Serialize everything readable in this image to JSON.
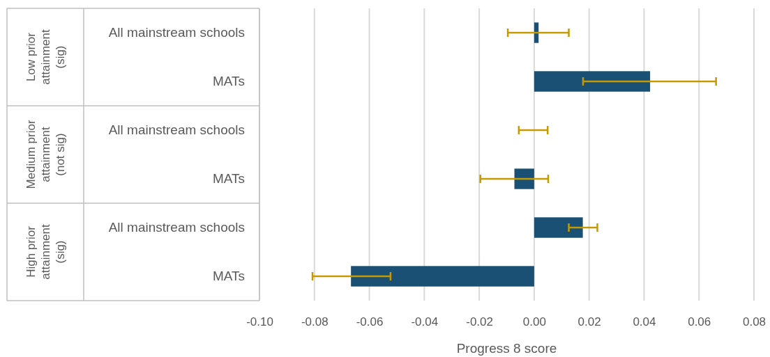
{
  "chart_data": {
    "type": "bar",
    "orientation": "horizontal",
    "xlabel": "Progress 8 score",
    "categories": [
      "All mainstream schools",
      "MATs",
      "All mainstream schools",
      "MATs",
      "All mainstream schools",
      "MATs"
    ],
    "annotations": [
      "Low prior attainment (sig)",
      "Medium prior attainment (not sig)",
      "High prior attainment (sig)"
    ],
    "series": [
      {
        "color": "#1a5074",
        "values": [
          0.0016,
          0.0422,
          0.0,
          -0.0072,
          0.0177,
          -0.0667
        ],
        "errors": [
          [
            -0.0096,
            0.0126
          ],
          [
            0.0178,
            0.0662
          ],
          [
            -0.0056,
            0.0049
          ],
          [
            -0.0196,
            0.0051
          ],
          [
            0.0126,
            0.023
          ],
          [
            -0.0807,
            -0.0523
          ]
        ]
      }
    ],
    "xlim": [
      -0.1,
      0.08
    ],
    "xticks": [
      {
        "value": -0.1,
        "label": "-0.10"
      },
      {
        "value": -0.08,
        "label": "-0.08"
      },
      {
        "value": -0.06,
        "label": "-0.06"
      },
      {
        "value": -0.04,
        "label": "-0.04"
      },
      {
        "value": -0.02,
        "label": "-0.02"
      },
      {
        "value": 0,
        "label": "0.00"
      },
      {
        "value": 0.02,
        "label": "0.02"
      },
      {
        "value": 0.04,
        "label": "0.04"
      },
      {
        "value": 0.06,
        "label": "0.06"
      },
      {
        "value": 0.08,
        "label": "0.08"
      }
    ],
    "grid": "x"
  }
}
